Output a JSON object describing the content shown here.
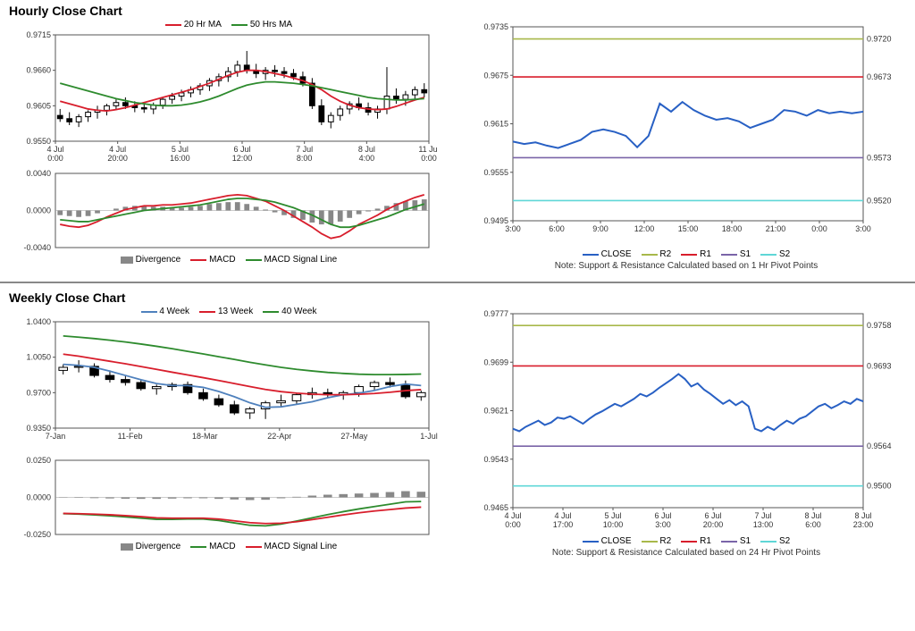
{
  "colors": {
    "red": "#d81e2c",
    "green": "#2e8b2e",
    "blue": "#2860c4",
    "blue_light": "#4f81bd",
    "purple": "#7a64a8",
    "cyan": "#5fd7d7",
    "olive": "#a8b84a",
    "gray_bar": "#888888",
    "black": "#000000",
    "grid": "#555555",
    "axis": "#333333",
    "bg": "#ffffff"
  },
  "hourly": {
    "title": "Hourly Close Chart",
    "main": {
      "legend": [
        {
          "swatch": "#d81e2c",
          "label": "20 Hr MA"
        },
        {
          "swatch": "#2e8b2e",
          "label": "50 Hrs MA"
        }
      ],
      "ylim": [
        0.955,
        0.9715
      ],
      "yticks": [
        0.955,
        0.9605,
        0.966,
        0.9715
      ],
      "xticks": [
        "4 Jul\n0:00",
        "4 Jul\n20:00",
        "5 Jul\n16:00",
        "6 Jul\n12:00",
        "7 Jul\n8:00",
        "8 Jul\n4:00",
        "11 Jul\n0:00"
      ],
      "candles": [
        {
          "o": 0.959,
          "h": 0.96,
          "l": 0.958,
          "c": 0.9585
        },
        {
          "o": 0.9585,
          "h": 0.9595,
          "l": 0.9575,
          "c": 0.958
        },
        {
          "o": 0.958,
          "h": 0.9592,
          "l": 0.9572,
          "c": 0.9588
        },
        {
          "o": 0.9588,
          "h": 0.9598,
          "l": 0.958,
          "c": 0.9595
        },
        {
          "o": 0.9595,
          "h": 0.9605,
          "l": 0.9585,
          "c": 0.9598
        },
        {
          "o": 0.9598,
          "h": 0.9608,
          "l": 0.959,
          "c": 0.9605
        },
        {
          "o": 0.9605,
          "h": 0.9615,
          "l": 0.9598,
          "c": 0.961
        },
        {
          "o": 0.961,
          "h": 0.9618,
          "l": 0.96,
          "c": 0.9605
        },
        {
          "o": 0.9605,
          "h": 0.9612,
          "l": 0.9595,
          "c": 0.9602
        },
        {
          "o": 0.9602,
          "h": 0.961,
          "l": 0.9594,
          "c": 0.96
        },
        {
          "o": 0.96,
          "h": 0.961,
          "l": 0.9592,
          "c": 0.9606
        },
        {
          "o": 0.9606,
          "h": 0.9618,
          "l": 0.96,
          "c": 0.9615
        },
        {
          "o": 0.9615,
          "h": 0.9625,
          "l": 0.9608,
          "c": 0.962
        },
        {
          "o": 0.962,
          "h": 0.963,
          "l": 0.9612,
          "c": 0.9625
        },
        {
          "o": 0.9625,
          "h": 0.9635,
          "l": 0.9618,
          "c": 0.963
        },
        {
          "o": 0.963,
          "h": 0.964,
          "l": 0.9622,
          "c": 0.9636
        },
        {
          "o": 0.9636,
          "h": 0.9648,
          "l": 0.9628,
          "c": 0.9644
        },
        {
          "o": 0.9644,
          "h": 0.9655,
          "l": 0.9635,
          "c": 0.965
        },
        {
          "o": 0.965,
          "h": 0.9665,
          "l": 0.9642,
          "c": 0.9658
        },
        {
          "o": 0.9658,
          "h": 0.9675,
          "l": 0.965,
          "c": 0.9668
        },
        {
          "o": 0.9668,
          "h": 0.969,
          "l": 0.9655,
          "c": 0.966
        },
        {
          "o": 0.966,
          "h": 0.967,
          "l": 0.9648,
          "c": 0.9655
        },
        {
          "o": 0.9655,
          "h": 0.9665,
          "l": 0.9645,
          "c": 0.966
        },
        {
          "o": 0.966,
          "h": 0.9668,
          "l": 0.965,
          "c": 0.9658
        },
        {
          "o": 0.9658,
          "h": 0.9665,
          "l": 0.9648,
          "c": 0.9655
        },
        {
          "o": 0.9655,
          "h": 0.9662,
          "l": 0.9645,
          "c": 0.965
        },
        {
          "o": 0.965,
          "h": 0.9658,
          "l": 0.9635,
          "c": 0.964
        },
        {
          "o": 0.964,
          "h": 0.9648,
          "l": 0.96,
          "c": 0.9605
        },
        {
          "o": 0.9605,
          "h": 0.9615,
          "l": 0.9575,
          "c": 0.958
        },
        {
          "o": 0.958,
          "h": 0.9595,
          "l": 0.957,
          "c": 0.959
        },
        {
          "o": 0.959,
          "h": 0.9605,
          "l": 0.9582,
          "c": 0.96
        },
        {
          "o": 0.96,
          "h": 0.9612,
          "l": 0.9592,
          "c": 0.9608
        },
        {
          "o": 0.9608,
          "h": 0.9618,
          "l": 0.9598,
          "c": 0.9602
        },
        {
          "o": 0.9602,
          "h": 0.961,
          "l": 0.959,
          "c": 0.9595
        },
        {
          "o": 0.9595,
          "h": 0.9605,
          "l": 0.9585,
          "c": 0.96
        },
        {
          "o": 0.96,
          "h": 0.9665,
          "l": 0.9592,
          "c": 0.962
        },
        {
          "o": 0.962,
          "h": 0.9632,
          "l": 0.9608,
          "c": 0.9615
        },
        {
          "o": 0.9615,
          "h": 0.9628,
          "l": 0.9605,
          "c": 0.9622
        },
        {
          "o": 0.9622,
          "h": 0.9635,
          "l": 0.9615,
          "c": 0.963
        },
        {
          "o": 0.963,
          "h": 0.964,
          "l": 0.9618,
          "c": 0.9625
        }
      ],
      "ma20": [
        0.9612,
        0.9608,
        0.9604,
        0.96,
        0.9598,
        0.9597,
        0.9599,
        0.9602,
        0.9606,
        0.961,
        0.9614,
        0.9618,
        0.9622,
        0.9626,
        0.963,
        0.9635,
        0.964,
        0.9646,
        0.9652,
        0.9657,
        0.966,
        0.966,
        0.9658,
        0.9655,
        0.9652,
        0.9648,
        0.9644,
        0.9638,
        0.963,
        0.962,
        0.9612,
        0.9606,
        0.9602,
        0.96,
        0.9599,
        0.96,
        0.9604,
        0.9609,
        0.9614,
        0.9618
      ],
      "ma50": [
        0.964,
        0.9636,
        0.9632,
        0.9628,
        0.9624,
        0.962,
        0.9616,
        0.9613,
        0.961,
        0.9608,
        0.9606,
        0.9605,
        0.9605,
        0.9606,
        0.9608,
        0.9611,
        0.9615,
        0.962,
        0.9626,
        0.9632,
        0.9637,
        0.964,
        0.9642,
        0.9642,
        0.9641,
        0.964,
        0.9638,
        0.9636,
        0.9633,
        0.963,
        0.9627,
        0.9624,
        0.9621,
        0.9618,
        0.9616,
        0.9615,
        0.9614,
        0.9614,
        0.9615,
        0.9616
      ]
    },
    "macd": {
      "ylim": [
        -0.004,
        0.004
      ],
      "yticks": [
        -0.004,
        0.0,
        0.004
      ],
      "legend": [
        {
          "swatch": "#888888",
          "label": "Divergence",
          "type": "box"
        },
        {
          "swatch": "#d81e2c",
          "label": "MACD"
        },
        {
          "swatch": "#2e8b2e",
          "label": "MACD Signal Line"
        }
      ],
      "divergence": [
        -0.0005,
        -0.0006,
        -0.0007,
        -0.0006,
        -0.0003,
        0.0,
        0.0002,
        0.0004,
        0.0005,
        0.0005,
        0.0004,
        0.0004,
        0.0003,
        0.0003,
        0.0004,
        0.0005,
        0.0007,
        0.0008,
        0.0009,
        0.0009,
        0.0007,
        0.0004,
        0.0001,
        -0.0002,
        -0.0005,
        -0.0008,
        -0.001,
        -0.0013,
        -0.0015,
        -0.0015,
        -0.0012,
        -0.0008,
        -0.0004,
        -0.0001,
        0.0002,
        0.0005,
        0.0008,
        0.001,
        0.0011,
        0.0012
      ],
      "macd": [
        -0.0015,
        -0.0017,
        -0.0018,
        -0.0016,
        -0.0012,
        -0.0007,
        -0.0003,
        0.0001,
        0.0003,
        0.0005,
        0.0005,
        0.0006,
        0.0006,
        0.0007,
        0.0008,
        0.001,
        0.0012,
        0.0014,
        0.0016,
        0.0017,
        0.0016,
        0.0013,
        0.001,
        0.0005,
        0.0,
        -0.0006,
        -0.0012,
        -0.0018,
        -0.0025,
        -0.003,
        -0.0028,
        -0.0022,
        -0.0015,
        -0.001,
        -0.0005,
        0.0001,
        0.0006,
        0.001,
        0.0014,
        0.0017
      ],
      "signal": [
        -0.001,
        -0.0011,
        -0.0012,
        -0.0012,
        -0.001,
        -0.0008,
        -0.0006,
        -0.0004,
        -0.0002,
        0.0,
        0.0001,
        0.0002,
        0.0003,
        0.0004,
        0.0005,
        0.0006,
        0.0008,
        0.001,
        0.0012,
        0.0013,
        0.0013,
        0.0012,
        0.0011,
        0.0009,
        0.0006,
        0.0003,
        -0.0001,
        -0.0005,
        -0.001,
        -0.0015,
        -0.0018,
        -0.0018,
        -0.0016,
        -0.0013,
        -0.001,
        -0.0007,
        -0.0003,
        0.0001,
        0.0004,
        0.0007
      ]
    },
    "sr": {
      "ylim": [
        0.9495,
        0.9735
      ],
      "yticks": [
        0.9495,
        0.9555,
        0.9615,
        0.9675,
        0.9735
      ],
      "xticks": [
        "3:00",
        "6:00",
        "9:00",
        "12:00",
        "15:00",
        "18:00",
        "21:00",
        "0:00",
        "3:00"
      ],
      "lines": {
        "R2": {
          "v": 0.972,
          "c": "#a8b84a"
        },
        "R1": {
          "v": 0.9673,
          "c": "#d81e2c"
        },
        "S1": {
          "v": 0.9573,
          "c": "#7a64a8"
        },
        "S2": {
          "v": 0.952,
          "c": "#5fd7d7"
        }
      },
      "close": [
        0.9593,
        0.959,
        0.9592,
        0.9588,
        0.9585,
        0.959,
        0.9595,
        0.9605,
        0.9608,
        0.9605,
        0.96,
        0.9586,
        0.96,
        0.964,
        0.963,
        0.9642,
        0.9632,
        0.9625,
        0.962,
        0.9622,
        0.9618,
        0.961,
        0.9615,
        0.962,
        0.9632,
        0.963,
        0.9625,
        0.9632,
        0.9628,
        0.963,
        0.9628,
        0.963
      ],
      "close_color": "#2860c4",
      "legend": [
        {
          "swatch": "#2860c4",
          "label": "CLOSE"
        },
        {
          "swatch": "#a8b84a",
          "label": "R2"
        },
        {
          "swatch": "#d81e2c",
          "label": "R1"
        },
        {
          "swatch": "#7a64a8",
          "label": "S1"
        },
        {
          "swatch": "#5fd7d7",
          "label": "S2"
        }
      ],
      "note": "Note: Support & Resistance Calculated based on 1 Hr Pivot Points"
    }
  },
  "weekly": {
    "title": "Weekly Close Chart",
    "main": {
      "legend": [
        {
          "swatch": "#4f81bd",
          "label": "4 Week"
        },
        {
          "swatch": "#d81e2c",
          "label": "13 Week"
        },
        {
          "swatch": "#2e8b2e",
          "label": "40 Week"
        }
      ],
      "ylim": [
        0.935,
        1.04
      ],
      "yticks": [
        0.935,
        0.97,
        1.005,
        1.04
      ],
      "xticks": [
        "7-Jan",
        "11-Feb",
        "18-Mar",
        "22-Apr",
        "27-May",
        "1-Jul"
      ],
      "candles": [
        {
          "o": 0.992,
          "h": 0.998,
          "l": 0.988,
          "c": 0.995
        },
        {
          "o": 0.995,
          "h": 1.002,
          "l": 0.99,
          "c": 0.996
        },
        {
          "o": 0.996,
          "h": 0.999,
          "l": 0.985,
          "c": 0.987
        },
        {
          "o": 0.987,
          "h": 0.992,
          "l": 0.98,
          "c": 0.983
        },
        {
          "o": 0.983,
          "h": 0.987,
          "l": 0.977,
          "c": 0.98
        },
        {
          "o": 0.98,
          "h": 0.983,
          "l": 0.972,
          "c": 0.974
        },
        {
          "o": 0.974,
          "h": 0.978,
          "l": 0.968,
          "c": 0.976
        },
        {
          "o": 0.976,
          "h": 0.98,
          "l": 0.972,
          "c": 0.978
        },
        {
          "o": 0.978,
          "h": 0.981,
          "l": 0.968,
          "c": 0.97
        },
        {
          "o": 0.97,
          "h": 0.974,
          "l": 0.962,
          "c": 0.964
        },
        {
          "o": 0.964,
          "h": 0.968,
          "l": 0.956,
          "c": 0.958
        },
        {
          "o": 0.958,
          "h": 0.962,
          "l": 0.948,
          "c": 0.95
        },
        {
          "o": 0.95,
          "h": 0.956,
          "l": 0.944,
          "c": 0.954
        },
        {
          "o": 0.954,
          "h": 0.962,
          "l": 0.944,
          "c": 0.96
        },
        {
          "o": 0.96,
          "h": 0.968,
          "l": 0.956,
          "c": 0.962
        },
        {
          "o": 0.962,
          "h": 0.97,
          "l": 0.958,
          "c": 0.968
        },
        {
          "o": 0.968,
          "h": 0.975,
          "l": 0.964,
          "c": 0.97
        },
        {
          "o": 0.97,
          "h": 0.974,
          "l": 0.965,
          "c": 0.968
        },
        {
          "o": 0.968,
          "h": 0.972,
          "l": 0.963,
          "c": 0.97
        },
        {
          "o": 0.97,
          "h": 0.978,
          "l": 0.966,
          "c": 0.976
        },
        {
          "o": 0.976,
          "h": 0.982,
          "l": 0.972,
          "c": 0.98
        },
        {
          "o": 0.98,
          "h": 0.985,
          "l": 0.975,
          "c": 0.978
        },
        {
          "o": 0.978,
          "h": 0.982,
          "l": 0.964,
          "c": 0.966
        },
        {
          "o": 0.966,
          "h": 0.972,
          "l": 0.962,
          "c": 0.97
        }
      ],
      "ma4": [
        0.998,
        0.997,
        0.995,
        0.9912,
        0.987,
        0.9828,
        0.979,
        0.977,
        0.977,
        0.9752,
        0.9712,
        0.966,
        0.96,
        0.9555,
        0.956,
        0.9585,
        0.961,
        0.965,
        0.968,
        0.9695,
        0.9722,
        0.976,
        0.9785,
        0.977
      ],
      "ma13": [
        1.008,
        1.006,
        1.0035,
        1.001,
        0.9985,
        0.9958,
        0.993,
        0.9902,
        0.9875,
        0.9848,
        0.982,
        0.979,
        0.976,
        0.9732,
        0.971,
        0.9695,
        0.9685,
        0.968,
        0.968,
        0.9684,
        0.9692,
        0.9704,
        0.972,
        0.973
      ],
      "ma40": [
        1.026,
        1.0248,
        1.0234,
        1.0218,
        1.02,
        1.018,
        1.0158,
        1.0134,
        1.0108,
        1.0082,
        1.0055,
        1.0028,
        1.0,
        0.9974,
        0.995,
        0.993,
        0.9914,
        0.99,
        0.989,
        0.9882,
        0.9878,
        0.9878,
        0.988,
        0.9884
      ]
    },
    "macd": {
      "ylim": [
        -0.025,
        0.025
      ],
      "yticks": [
        -0.025,
        0.0,
        0.025
      ],
      "legend": [
        {
          "swatch": "#888888",
          "label": "Divergence",
          "type": "box"
        },
        {
          "swatch": "#2e8b2e",
          "label": "MACD"
        },
        {
          "swatch": "#d81e2c",
          "label": "MACD Signal Line"
        }
      ],
      "divergence": [
        -0.0002,
        -0.0003,
        -0.0005,
        -0.0007,
        -0.0009,
        -0.001,
        -0.001,
        -0.0008,
        -0.0006,
        -0.0006,
        -0.001,
        -0.0014,
        -0.0018,
        -0.0016,
        -0.0006,
        0.0004,
        0.0012,
        0.0018,
        0.0022,
        0.0026,
        0.003,
        0.0036,
        0.0042,
        0.0038
      ],
      "macd": [
        -0.011,
        -0.0113,
        -0.0118,
        -0.0124,
        -0.0132,
        -0.014,
        -0.0148,
        -0.0148,
        -0.0146,
        -0.0146,
        -0.0156,
        -0.0172,
        -0.0188,
        -0.0192,
        -0.018,
        -0.016,
        -0.0138,
        -0.0116,
        -0.0096,
        -0.0078,
        -0.0062,
        -0.0046,
        -0.003,
        -0.0028
      ],
      "signal": [
        -0.0108,
        -0.011,
        -0.0113,
        -0.0117,
        -0.0123,
        -0.013,
        -0.0138,
        -0.014,
        -0.014,
        -0.014,
        -0.0146,
        -0.0158,
        -0.017,
        -0.0176,
        -0.0174,
        -0.0164,
        -0.015,
        -0.0134,
        -0.0118,
        -0.0104,
        -0.0092,
        -0.0082,
        -0.0072,
        -0.0066
      ]
    },
    "sr": {
      "ylim": [
        0.9465,
        0.9777
      ],
      "yticks": [
        0.9465,
        0.9543,
        0.9621,
        0.9699,
        0.9777
      ],
      "xticks": [
        "4 Jul\n0:00",
        "4 Jul\n17:00",
        "5 Jul\n10:00",
        "6 Jul\n3:00",
        "6 Jul\n20:00",
        "7 Jul\n13:00",
        "8 Jul\n6:00",
        "8 Jul\n23:00"
      ],
      "lines": {
        "R2": {
          "v": 0.9758,
          "c": "#a8b84a"
        },
        "R1": {
          "v": 0.9693,
          "c": "#d81e2c"
        },
        "S1": {
          "v": 0.9564,
          "c": "#7a64a8"
        },
        "S2": {
          "v": 0.95,
          "c": "#5fd7d7"
        }
      },
      "close": [
        0.9592,
        0.9588,
        0.9595,
        0.96,
        0.9605,
        0.9598,
        0.9602,
        0.961,
        0.9608,
        0.9612,
        0.9606,
        0.96,
        0.9608,
        0.9615,
        0.962,
        0.9626,
        0.9632,
        0.9628,
        0.9634,
        0.964,
        0.9648,
        0.9644,
        0.965,
        0.9658,
        0.9665,
        0.9672,
        0.968,
        0.9672,
        0.966,
        0.9665,
        0.9655,
        0.9648,
        0.964,
        0.9632,
        0.9638,
        0.963,
        0.9636,
        0.9628,
        0.9592,
        0.9588,
        0.9595,
        0.959,
        0.9598,
        0.9605,
        0.96,
        0.9608,
        0.9612,
        0.962,
        0.9628,
        0.9632,
        0.9625,
        0.963,
        0.9636,
        0.9632,
        0.964,
        0.9636
      ],
      "close_color": "#2860c4",
      "legend": [
        {
          "swatch": "#2860c4",
          "label": "CLOSE"
        },
        {
          "swatch": "#a8b84a",
          "label": "R2"
        },
        {
          "swatch": "#d81e2c",
          "label": "R1"
        },
        {
          "swatch": "#7a64a8",
          "label": "S1"
        },
        {
          "swatch": "#5fd7d7",
          "label": "S2"
        }
      ],
      "note": "Note: Support & Resistance Calculated based on 24 Hr Pivot Points"
    }
  }
}
